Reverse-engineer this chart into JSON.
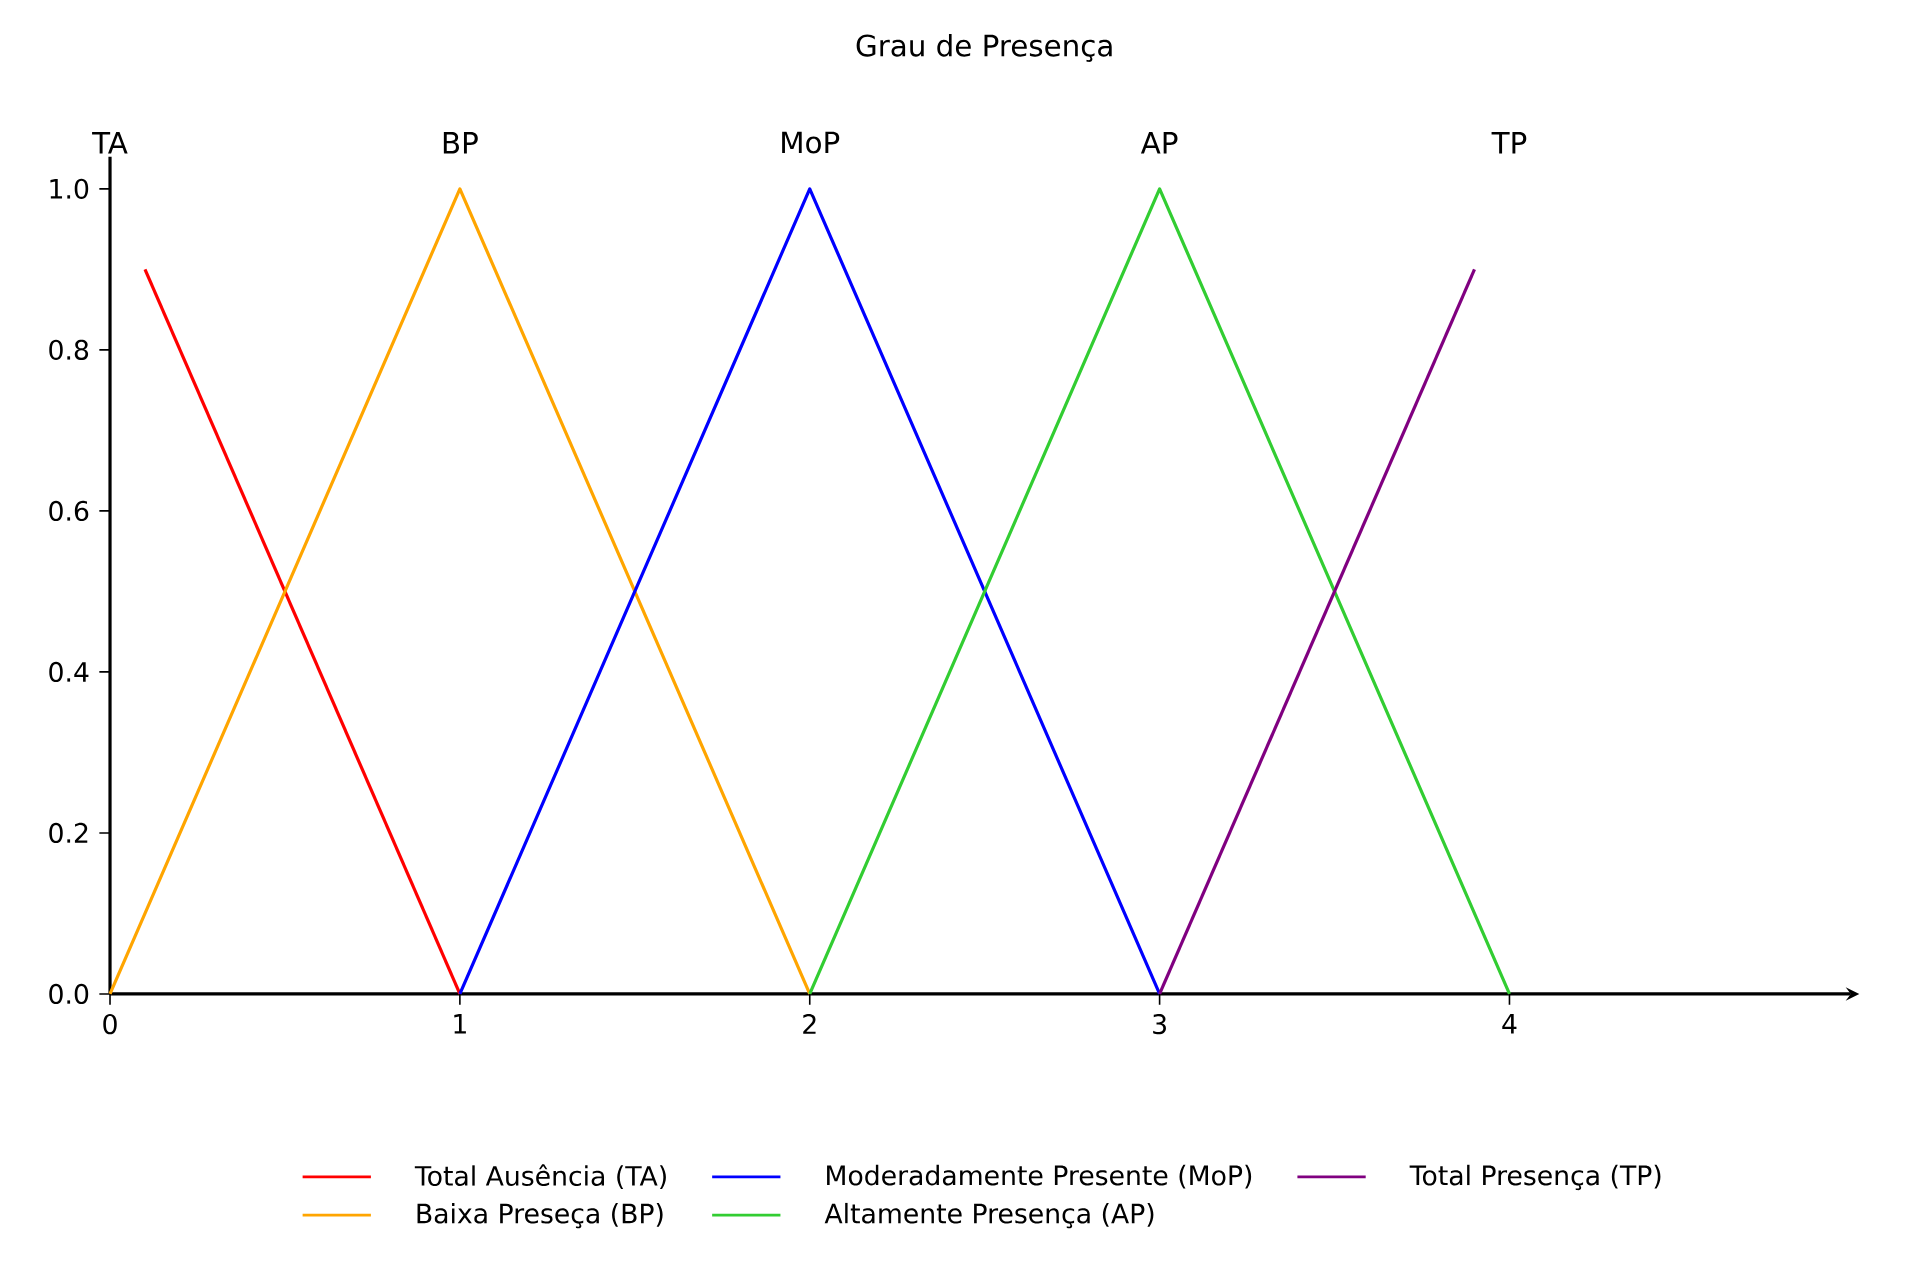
{
  "chart_data": {
    "type": "line",
    "title": "Grau de Presença",
    "series": [
      {
        "name": "Total Ausência (TA)",
        "color": "#ff0000",
        "x": [
          0.1,
          1
        ],
        "values": [
          0.9,
          0
        ]
      },
      {
        "name": "Baixa Preseça (BP)",
        "color": "#ffa500",
        "x": [
          0,
          1,
          2
        ],
        "values": [
          0,
          1,
          0
        ]
      },
      {
        "name": "Moderadamente Presente (MoP)",
        "color": "#0000ff",
        "x": [
          1,
          2,
          3
        ],
        "values": [
          0,
          1,
          0
        ]
      },
      {
        "name": "Altamente Presença (AP)",
        "color": "#32cd32",
        "x": [
          2,
          3,
          4
        ],
        "values": [
          0,
          1,
          0
        ]
      },
      {
        "name": "Total Presença (TP)",
        "color": "#800080",
        "x": [
          3,
          3.9
        ],
        "values": [
          0,
          0.9
        ]
      }
    ],
    "annotations": [
      "TA",
      "BP",
      "MoP",
      "AP",
      "TP"
    ],
    "xlim": [
      0,
      5
    ],
    "ylim": [
      0,
      1.04
    ],
    "xticks": [
      0,
      1,
      2,
      3,
      4
    ],
    "yticks": [
      {
        "value": 0,
        "label": "0.0"
      },
      {
        "value": 0.2,
        "label": "0.2"
      },
      {
        "value": 0.4,
        "label": "0.4"
      },
      {
        "value": 0.6,
        "label": "0.6"
      },
      {
        "value": 0.8,
        "label": "0.8"
      },
      {
        "value": 1.0,
        "label": "1.0"
      }
    ],
    "legend": "bottom",
    "marker": "none",
    "line_style": "solid"
  }
}
